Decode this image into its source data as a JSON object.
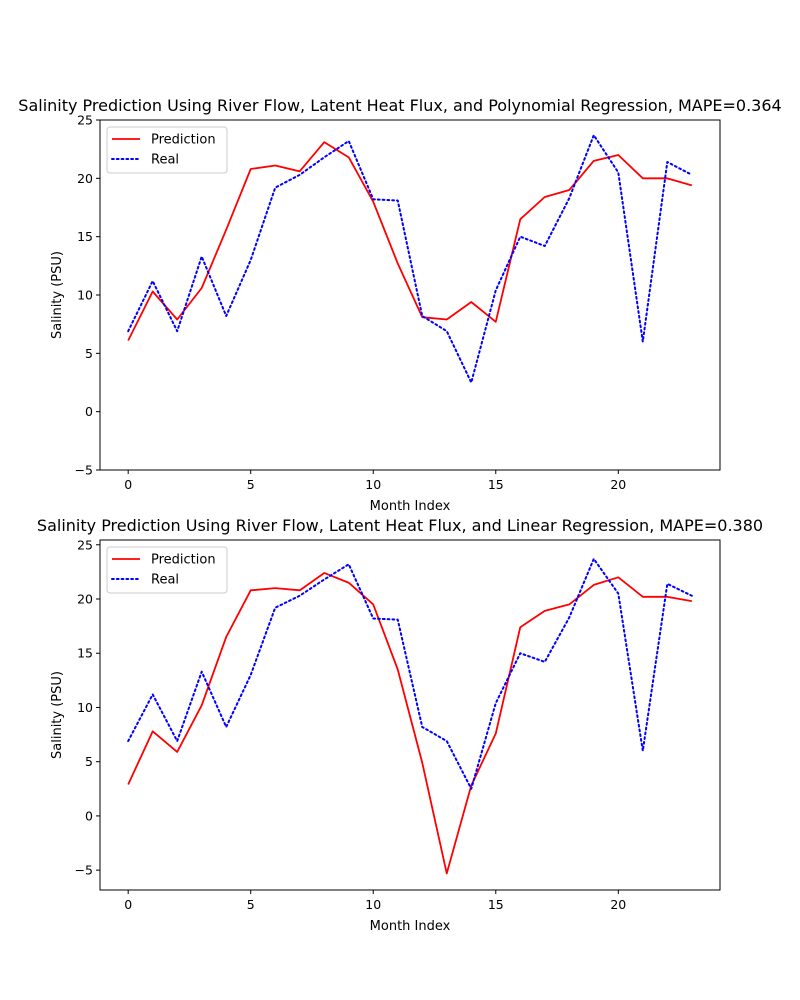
{
  "chart_data": [
    {
      "type": "line",
      "title": "Salinity Prediction Using River Flow, Latent Heat Flux, and Polynomial Regression, MAPE=0.364",
      "xlabel": "Month Index",
      "ylabel": "Salinity (PSU)",
      "xlim": [
        -1.15,
        24.15
      ],
      "ylim": [
        -5,
        25
      ],
      "xticks": [
        0,
        5,
        10,
        15,
        20
      ],
      "yticks": [
        -5,
        0,
        5,
        10,
        15,
        20,
        25
      ],
      "grid": false,
      "legend_position": "upper-left",
      "x": [
        0,
        1,
        2,
        3,
        4,
        5,
        6,
        7,
        8,
        9,
        10,
        11,
        12,
        13,
        14,
        15,
        16,
        17,
        18,
        19,
        20,
        21,
        22,
        23
      ],
      "series": [
        {
          "name": "Prediction",
          "color": "#ff0000",
          "style": "solid",
          "values": [
            6.1,
            10.3,
            7.9,
            10.6,
            15.6,
            20.8,
            21.1,
            20.6,
            23.1,
            21.8,
            18.0,
            12.7,
            8.1,
            7.9,
            9.4,
            7.7,
            16.5,
            18.4,
            19.0,
            21.5,
            22.0,
            20.0,
            20.0,
            19.4
          ]
        },
        {
          "name": "Real",
          "color": "#0000ff",
          "style": "dotted",
          "values": [
            6.9,
            11.2,
            6.9,
            13.3,
            8.2,
            13.0,
            19.2,
            20.3,
            21.8,
            23.2,
            18.2,
            18.1,
            8.2,
            6.9,
            2.5,
            10.4,
            15.0,
            14.2,
            18.3,
            23.7,
            20.5,
            6.0,
            21.4,
            20.3
          ]
        }
      ]
    },
    {
      "type": "line",
      "title": "Salinity Prediction Using River Flow, Latent Heat Flux, and Linear Regression, MAPE=0.380",
      "xlabel": "Month Index",
      "ylabel": "Salinity (PSU)",
      "xlim": [
        -1.15,
        24.15
      ],
      "ylim": [
        -6.83,
        25.44
      ],
      "xticks": [
        0,
        5,
        10,
        15,
        20
      ],
      "yticks": [
        -5,
        0,
        5,
        10,
        15,
        20,
        25
      ],
      "grid": false,
      "legend_position": "upper-left",
      "x": [
        0,
        1,
        2,
        3,
        4,
        5,
        6,
        7,
        8,
        9,
        10,
        11,
        12,
        13,
        14,
        15,
        16,
        17,
        18,
        19,
        20,
        21,
        22,
        23
      ],
      "series": [
        {
          "name": "Prediction",
          "color": "#ff0000",
          "style": "solid",
          "values": [
            2.9,
            7.8,
            5.9,
            10.2,
            16.5,
            20.8,
            21.0,
            20.8,
            22.4,
            21.5,
            19.5,
            13.5,
            4.9,
            -5.3,
            2.8,
            7.6,
            17.4,
            18.9,
            19.5,
            21.3,
            22.0,
            20.2,
            20.2,
            19.8
          ]
        },
        {
          "name": "Real",
          "color": "#0000ff",
          "style": "dotted",
          "values": [
            6.9,
            11.2,
            6.9,
            13.3,
            8.2,
            13.0,
            19.2,
            20.3,
            21.8,
            23.2,
            18.2,
            18.1,
            8.2,
            6.9,
            2.5,
            10.4,
            15.0,
            14.2,
            18.3,
            23.7,
            20.5,
            6.0,
            21.4,
            20.3
          ]
        }
      ]
    }
  ]
}
